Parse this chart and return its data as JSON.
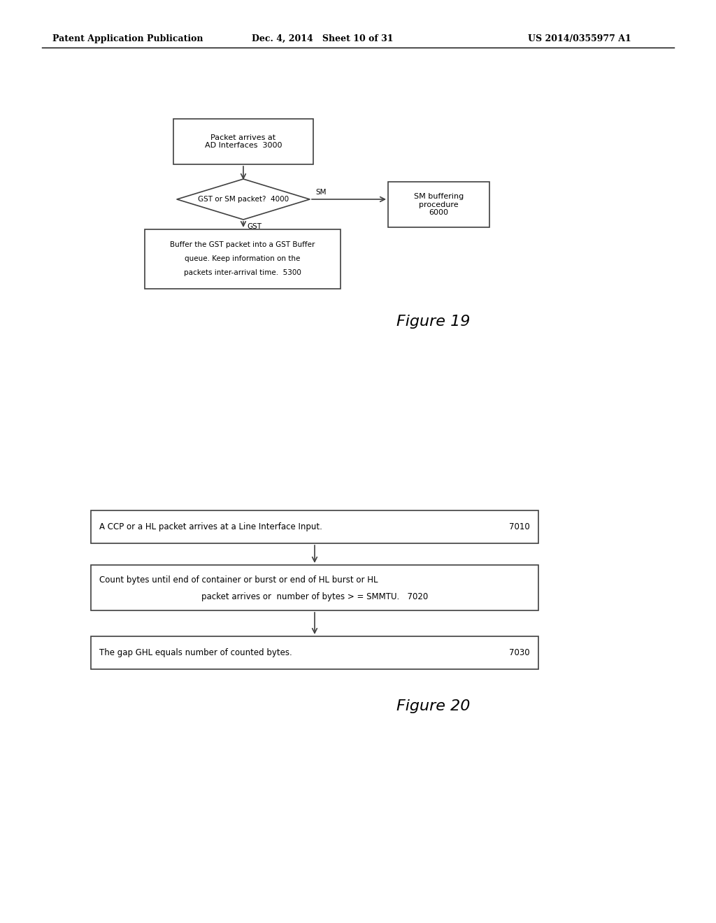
{
  "background_color": "#ffffff",
  "header_left": "Patent Application Publication",
  "header_mid": "Dec. 4, 2014   Sheet 10 of 31",
  "header_right": "US 2014/0355977 A1",
  "fig19_title": "Figure 19",
  "fig20_title": "Figure 20",
  "fig19_box1_text": "Packet arrives at\nAD Interfaces  3000",
  "fig19_diamond_text": "GST or SM packet?  4000",
  "fig19_sm_label": "SM",
  "fig19_gst_label": "GST",
  "fig19_sm_box_text": "SM buffering\nprocedure\n6000",
  "fig19_box3_line1": "Buffer the GST packet into a GST Buffer",
  "fig19_box3_line2": "queue. Keep information on the",
  "fig19_box3_line3": "packets inter-arrival time.  5300",
  "fig20_box1_line1": "A CCP or a HL packet arrives at a Line Interface Input.",
  "fig20_box1_num": "7010",
  "fig20_box2_line1": "Count bytes until end of container or burst or end of HL burst or HL",
  "fig20_box2_line2": "packet arrives or  number of bytes > = SMMTU.",
  "fig20_box2_num": "7020",
  "fig20_box3_line1": "The gap GHL equals number of counted bytes.",
  "fig20_box3_num": "7030"
}
